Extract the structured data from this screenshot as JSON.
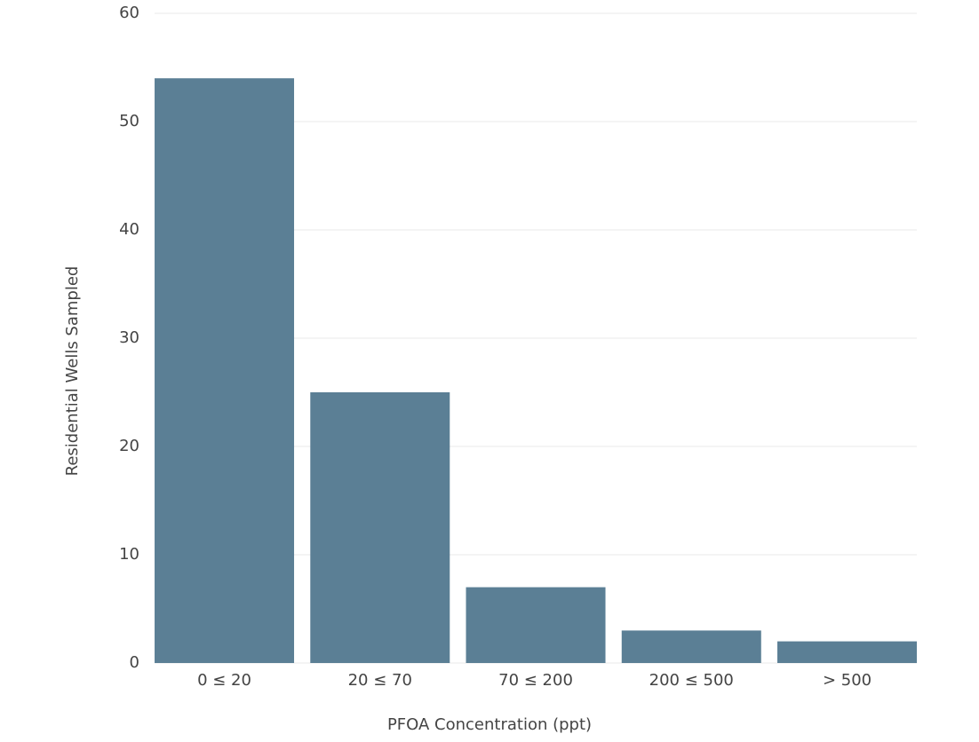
{
  "chart_data": {
    "type": "bar",
    "x_label": "PFOA Concentration (ppt)",
    "y_label": "Residential Wells Sampled",
    "categories": [
      "0 ≤ 20",
      "20 ≤ 70",
      "70 ≤ 200",
      "200 ≤ 500",
      "> 500"
    ],
    "values": [
      54,
      25,
      7,
      3,
      2
    ],
    "color": "#5b7f95",
    "ylim": [
      0,
      60
    ],
    "yticks": [
      0,
      10,
      20,
      30,
      40,
      50,
      60
    ],
    "grid": true
  }
}
